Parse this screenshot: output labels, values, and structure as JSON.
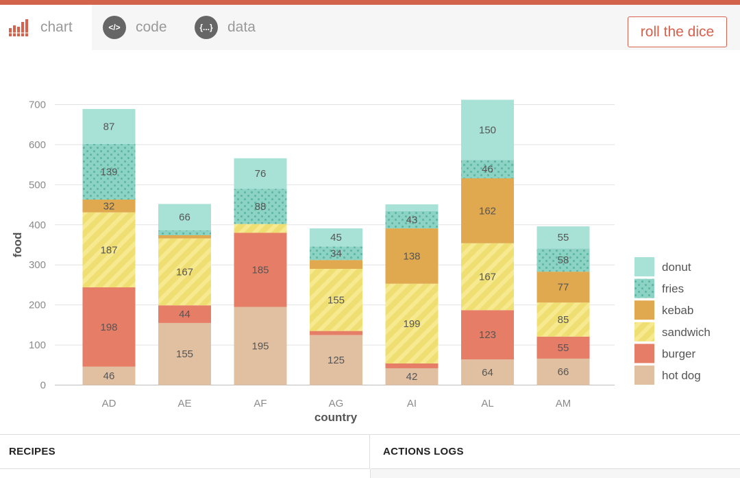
{
  "tabs": [
    {
      "label": "chart",
      "icon": "bar-chart-icon"
    },
    {
      "label": "code",
      "icon": "code-icon",
      "glyph": "</>"
    },
    {
      "label": "data",
      "icon": "json-braces-icon",
      "glyph": "{...}"
    }
  ],
  "dice_label": "roll the dice",
  "panels": {
    "recipes": "RECIPES",
    "actions": "ACTIONS LOGS"
  },
  "colors": {
    "accent": "#d9604a",
    "donut": "#a8e1d6",
    "fries": "#8dd3c4",
    "kebab": "#e0a94f",
    "sandwich": "#efdf72",
    "burger": "#e67e67",
    "hotdog": "#e1c0a2"
  },
  "chart_data": {
    "type": "bar",
    "stacked": true,
    "categories": [
      "AD",
      "AE",
      "AF",
      "AG",
      "AI",
      "AL",
      "AM"
    ],
    "series": [
      {
        "name": "hot dog",
        "values": [
          46,
          155,
          195,
          125,
          42,
          64,
          66
        ]
      },
      {
        "name": "burger",
        "values": [
          198,
          44,
          185,
          10,
          12,
          123,
          55
        ]
      },
      {
        "name": "sandwich",
        "values": [
          187,
          167,
          22,
          155,
          199,
          167,
          85
        ]
      },
      {
        "name": "kebab",
        "values": [
          32,
          8,
          0,
          22,
          138,
          162,
          77
        ]
      },
      {
        "name": "fries",
        "values": [
          139,
          12,
          88,
          34,
          43,
          46,
          58
        ]
      },
      {
        "name": "donut",
        "values": [
          87,
          66,
          76,
          45,
          17,
          150,
          55
        ]
      }
    ],
    "labels_shown": [
      [
        true,
        true,
        true,
        true,
        true,
        true,
        true
      ],
      [
        true,
        true,
        true,
        false,
        false,
        true,
        true
      ],
      [
        true,
        true,
        false,
        true,
        true,
        true,
        true
      ],
      [
        true,
        false,
        false,
        false,
        true,
        true,
        true
      ],
      [
        true,
        false,
        true,
        true,
        true,
        true,
        true
      ],
      [
        true,
        true,
        true,
        true,
        false,
        true,
        true
      ]
    ],
    "legend": [
      "donut",
      "fries",
      "kebab",
      "sandwich",
      "burger",
      "hot dog"
    ],
    "xlabel": "country",
    "ylabel": "food",
    "ylim": [
      0,
      700
    ],
    "yticks": [
      0,
      100,
      200,
      300,
      400,
      500,
      600,
      700
    ],
    "grid": true,
    "legend_position": "right"
  }
}
